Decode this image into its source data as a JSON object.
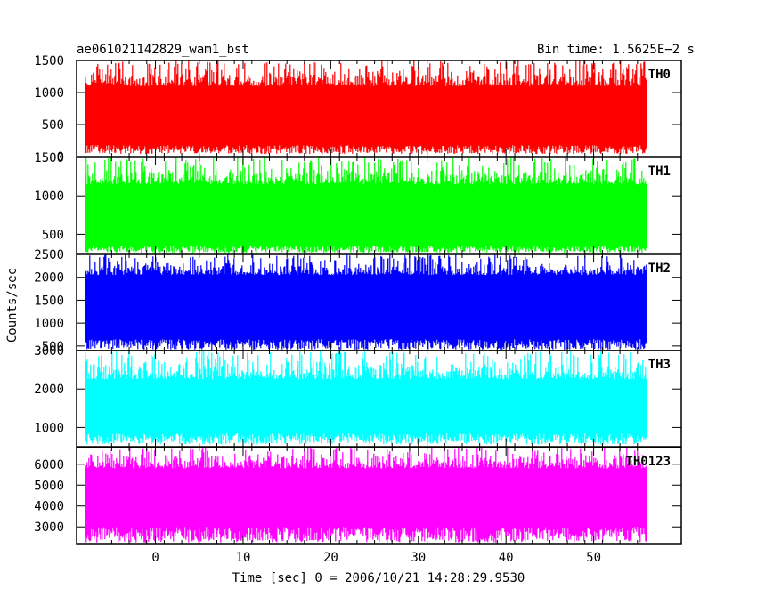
{
  "header": {
    "title": "ae061021142829_wam1_bst",
    "bin_time": "Bin time: 1.5625E−2 s"
  },
  "ylabel": "Counts/sec",
  "xlabel": "Time [sec] 0 = 2006/10/21 14:28:29.9530",
  "chart_data": [
    {
      "type": "area",
      "name": "TH0",
      "color": "#ff0000",
      "ylim": [
        0,
        1500
      ],
      "yticks": [
        "1500",
        "1000",
        "500",
        "0"
      ],
      "ytick_values": [
        1500,
        1000,
        500,
        0
      ],
      "xlim": [
        -9,
        60
      ],
      "xticks": [
        "0",
        "10",
        "20",
        "30",
        "40",
        "50"
      ],
      "xtick_values": [
        0,
        10,
        20,
        30,
        40,
        50
      ],
      "data_xrange": [
        -8,
        56
      ],
      "band_low": 180,
      "band_high": 1100,
      "min_value": 40,
      "max_value": 1500
    },
    {
      "type": "area",
      "name": "TH1",
      "color": "#00ff00",
      "ylim": [
        250,
        1500
      ],
      "yticks": [
        "1500",
        "1000",
        "500"
      ],
      "ytick_values": [
        1500,
        1000,
        500
      ],
      "xlim": [
        -9,
        60
      ],
      "data_xrange": [
        -8,
        56
      ],
      "band_low": 350,
      "band_high": 1150,
      "min_value": 260,
      "max_value": 1500
    },
    {
      "type": "area",
      "name": "TH2",
      "color": "#0000ff",
      "ylim": [
        400,
        2500
      ],
      "yticks": [
        "2500",
        "2000",
        "1500",
        "1000",
        "500"
      ],
      "ytick_values": [
        2500,
        2000,
        1500,
        1000,
        500
      ],
      "xlim": [
        -9,
        60
      ],
      "data_xrange": [
        -8,
        56
      ],
      "band_low": 650,
      "band_high": 2050,
      "min_value": 420,
      "max_value": 2500
    },
    {
      "type": "area",
      "name": "TH3",
      "color": "#00ffff",
      "ylim": [
        500,
        3000
      ],
      "yticks": [
        "3000",
        "2000",
        "1000"
      ],
      "ytick_values": [
        3000,
        2000,
        1000
      ],
      "xlim": [
        -9,
        60
      ],
      "data_xrange": [
        -8,
        56
      ],
      "band_low": 850,
      "band_high": 2250,
      "min_value": 560,
      "max_value": 3000
    },
    {
      "type": "area",
      "name": "TH0123",
      "color": "#ff00ff",
      "ylim": [
        2200,
        6800
      ],
      "yticks": [
        "6000",
        "5000",
        "4000",
        "3000"
      ],
      "ytick_values": [
        6000,
        5000,
        4000,
        3000
      ],
      "xlim": [
        -9,
        60
      ],
      "data_xrange": [
        -8,
        56
      ],
      "band_low": 3000,
      "band_high": 5800,
      "min_value": 2250,
      "max_value": 6800
    }
  ]
}
